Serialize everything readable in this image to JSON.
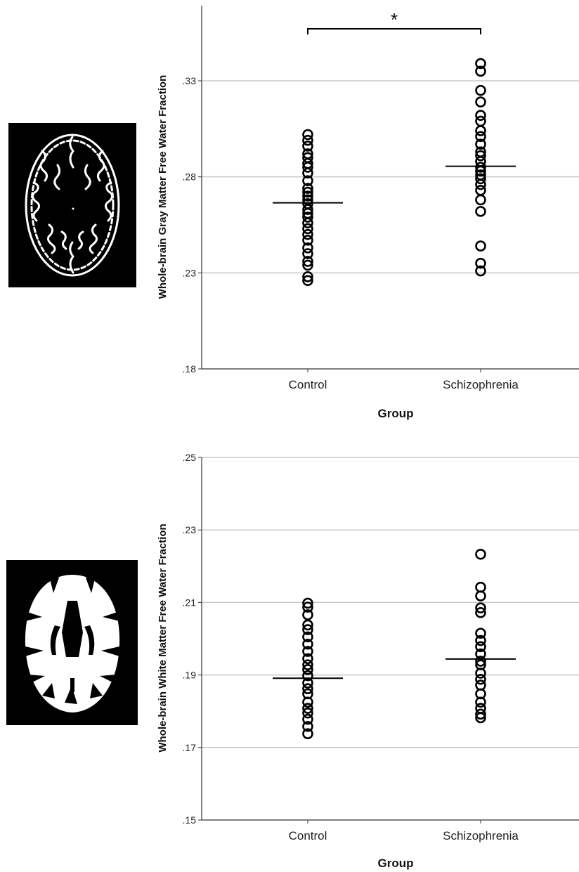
{
  "chart_data": [
    {
      "type": "scatter",
      "xlabel": "Group",
      "ylabel": "Whole-brain Gray Matter Free Water Fraction",
      "ylim": [
        0.18,
        0.365
      ],
      "yticks": [
        0.18,
        0.23,
        0.28,
        0.33
      ],
      "ytick_labels": [
        ".18",
        ".23",
        ".28",
        ".33"
      ],
      "grid": true,
      "categories": [
        "Control",
        "Schizophrenia"
      ],
      "significance": {
        "label": "*",
        "between": [
          "Control",
          "Schizophrenia"
        ],
        "y": 0.357
      },
      "series": [
        {
          "category": "Control",
          "values": [
            0.302,
            0.299,
            0.296,
            0.292,
            0.29,
            0.287,
            0.285,
            0.282,
            0.278,
            0.274,
            0.272,
            0.27,
            0.268,
            0.266,
            0.263,
            0.261,
            0.259,
            0.256,
            0.253,
            0.25,
            0.247,
            0.243,
            0.24,
            0.236,
            0.234,
            0.228,
            0.226
          ],
          "mean": 0.2665
        },
        {
          "category": "Schizophrenia",
          "values": [
            0.339,
            0.335,
            0.325,
            0.319,
            0.312,
            0.309,
            0.304,
            0.301,
            0.297,
            0.293,
            0.291,
            0.288,
            0.285,
            0.283,
            0.281,
            0.279,
            0.276,
            0.273,
            0.268,
            0.262,
            0.244,
            0.235,
            0.231
          ],
          "mean": 0.2855
        }
      ]
    },
    {
      "type": "scatter",
      "xlabel": "Group",
      "ylabel": "Whole-brain White Matter Free Water Fraction",
      "ylim": [
        0.15,
        0.25
      ],
      "yticks": [
        0.15,
        0.17,
        0.19,
        0.21,
        0.23,
        0.25
      ],
      "ytick_labels": [
        ".15",
        ".17",
        ".19",
        ".21",
        ".23",
        ".25"
      ],
      "grid": true,
      "categories": [
        "Control",
        "Schizophrenia"
      ],
      "series": [
        {
          "category": "Control",
          "values": [
            0.2098,
            0.2087,
            0.2066,
            0.2038,
            0.2025,
            0.2005,
            0.1985,
            0.1965,
            0.1945,
            0.1928,
            0.1915,
            0.1898,
            0.1878,
            0.1862,
            0.1848,
            0.1825,
            0.1808,
            0.1795,
            0.1778,
            0.1758,
            0.1738
          ],
          "mean": 0.1891
        },
        {
          "category": "Schizophrenia",
          "values": [
            0.2233,
            0.2142,
            0.2118,
            0.2085,
            0.2072,
            0.2015,
            0.1995,
            0.1978,
            0.1958,
            0.1938,
            0.1928,
            0.1905,
            0.1888,
            0.1872,
            0.1848,
            0.1825,
            0.1808,
            0.1792,
            0.1782
          ],
          "mean": 0.1944
        }
      ]
    }
  ],
  "images": [
    {
      "name": "gray-matter-brain-mask-image",
      "icon": "gray-matter-axial-slice"
    },
    {
      "name": "white-matter-brain-mask-image",
      "icon": "white-matter-axial-slice"
    }
  ]
}
